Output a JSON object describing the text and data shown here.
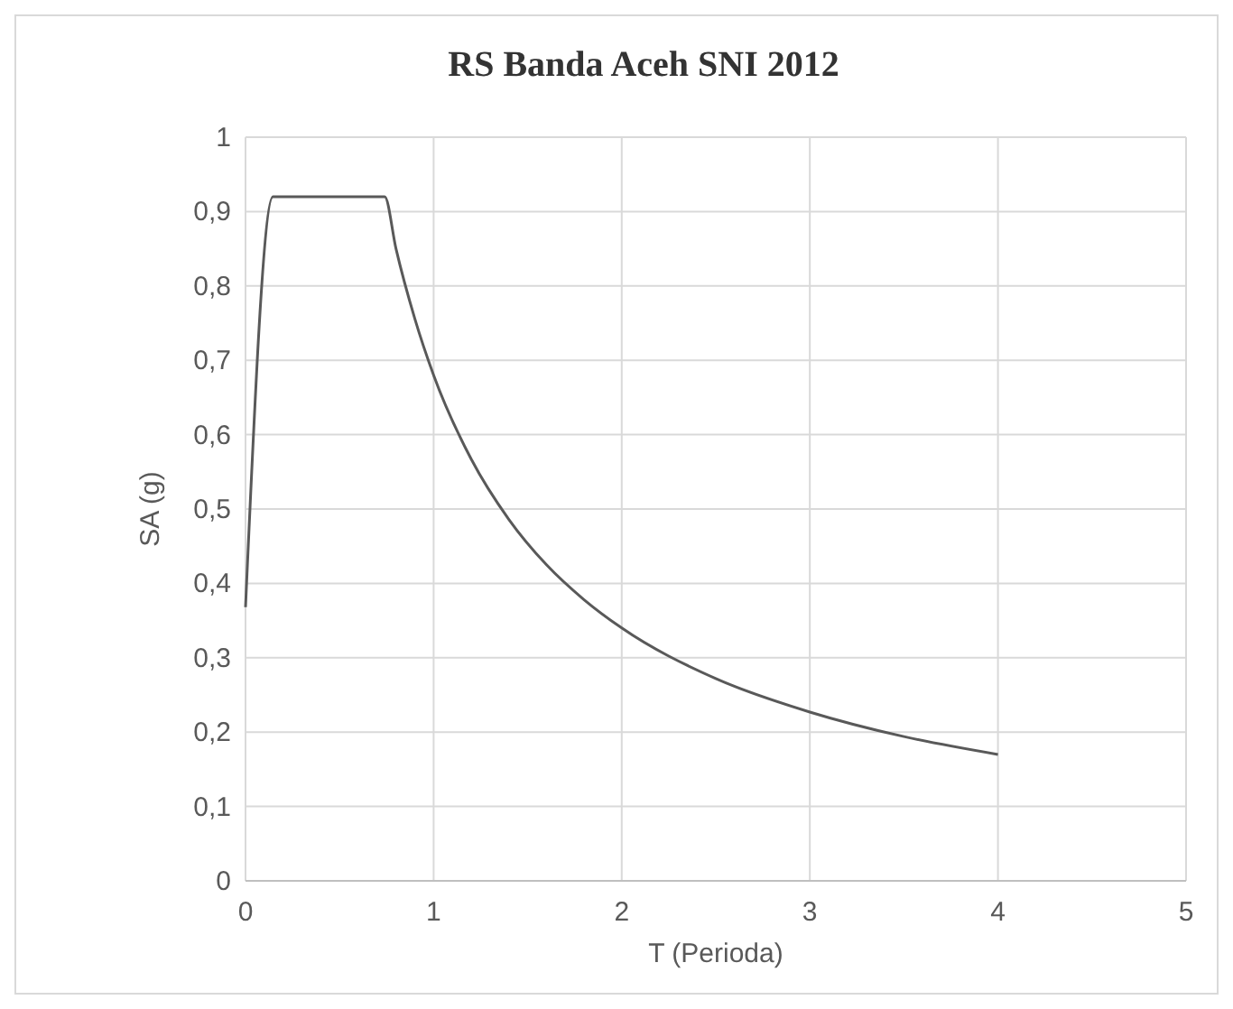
{
  "chart_data": {
    "type": "line",
    "title": "RS Banda Aceh SNI 2012",
    "xlabel": "T (Perioda)",
    "ylabel": "SA (g)",
    "x": [
      0,
      0.146,
      0.74,
      0.8,
      0.9,
      1,
      1.2,
      1.4,
      1.6,
      1.8,
      2,
      2.5,
      3,
      3.5,
      4
    ],
    "series": [
      {
        "color": "#595959",
        "values": [
          0.368,
          0.92,
          0.92,
          0.85,
          0.756,
          0.68,
          0.567,
          0.486,
          0.425,
          0.378,
          0.34,
          0.272,
          0.227,
          0.194,
          0.17
        ]
      }
    ],
    "xlim": [
      0,
      5
    ],
    "xticks": [
      0,
      1,
      2,
      3,
      4,
      5
    ],
    "ylim": [
      0,
      1
    ],
    "yticks": [
      {
        "value": 0,
        "label": "0"
      },
      {
        "value": 0.1,
        "label": "0,1"
      },
      {
        "value": 0.2,
        "label": "0,2"
      },
      {
        "value": 0.3,
        "label": "0,3"
      },
      {
        "value": 0.4,
        "label": "0,4"
      },
      {
        "value": 0.5,
        "label": "0,5"
      },
      {
        "value": 0.6,
        "label": "0,6"
      },
      {
        "value": 0.7,
        "label": "0,7"
      },
      {
        "value": 0.8,
        "label": "0,8"
      },
      {
        "value": 0.9,
        "label": "0,9"
      },
      {
        "value": 1,
        "label": "1"
      }
    ],
    "grid": true,
    "marker": "none",
    "line_style": "solid"
  }
}
